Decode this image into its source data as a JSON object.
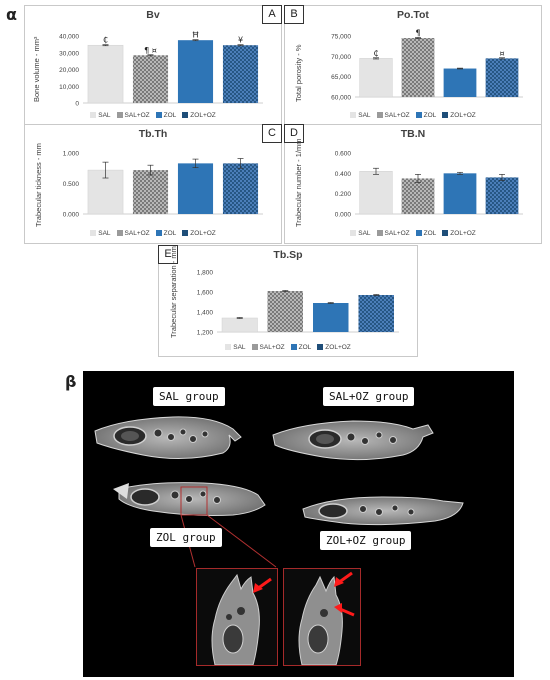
{
  "figure": {
    "alpha_label": "α",
    "beta_label": "β"
  },
  "legend_labels": [
    "SAL",
    "SAL+OZ",
    "ZOL",
    "ZOL+OZ"
  ],
  "colors": {
    "SAL": "#e4e4e4",
    "SAL+OZ": "#9a9a9a",
    "ZOL": "#2e75b6",
    "ZOL+OZ": "#1f4e79"
  },
  "panels": {
    "A": {
      "letter": "A",
      "title": "Bv",
      "ylabel": "Bone volume - mm³"
    },
    "B": {
      "letter": "B",
      "title": "Po.Tot",
      "ylabel": "Total porosity - %"
    },
    "C": {
      "letter": "C",
      "title": "Tb.Th",
      "ylabel": "Trabecular tickness - mm"
    },
    "D": {
      "letter": "D",
      "title": "TB.N",
      "ylabel": "Trabecular number - 1/mm"
    },
    "E": {
      "letter": "E",
      "title": "Tb.Sp",
      "ylabel": "Trabecular separation - mm"
    }
  },
  "chart_data": [
    {
      "panel": "A",
      "type": "bar",
      "title": "Bv",
      "ylabel": "Bone volume - mm³",
      "categories": [
        "SAL",
        "SAL+OZ",
        "ZOL",
        "ZOL+OZ"
      ],
      "values": [
        34500,
        28500,
        37500,
        34500
      ],
      "errors": [
        300,
        300,
        300,
        300
      ],
      "ylim": [
        0,
        40000
      ],
      "yticks": [
        0,
        10000,
        20000,
        30000,
        40000
      ],
      "ytick_labels": [
        "0",
        "10,000",
        "20,000",
        "30,000",
        "40,000"
      ],
      "annotations": [
        "₵",
        "¶ ¤",
        "Ħ",
        "¥"
      ],
      "grid": false,
      "legend": "bottom"
    },
    {
      "panel": "B",
      "type": "bar",
      "title": "Po.Tot",
      "ylabel": "Total porosity - %",
      "categories": [
        "SAL",
        "SAL+OZ",
        "ZOL",
        "ZOL+OZ"
      ],
      "values": [
        69500,
        74500,
        67000,
        69500
      ],
      "errors": [
        150,
        150,
        100,
        150
      ],
      "ylim": [
        60000,
        75000
      ],
      "yticks": [
        60000,
        65000,
        70000,
        75000
      ],
      "ytick_labels": [
        "60,000",
        "65,000",
        "70,000",
        "75,000"
      ],
      "annotations": [
        "₵",
        "¶",
        "",
        "¤"
      ],
      "grid": false,
      "legend": "bottom"
    },
    {
      "panel": "C",
      "type": "bar",
      "title": "Tb.Th",
      "ylabel": "Trabecular tickness - mm",
      "categories": [
        "SAL",
        "SAL+OZ",
        "ZOL",
        "ZOL+OZ"
      ],
      "values": [
        0.72,
        0.72,
        0.83,
        0.83
      ],
      "errors": [
        0.13,
        0.08,
        0.07,
        0.08
      ],
      "ylim": [
        0,
        1
      ],
      "yticks": [
        0,
        0.5,
        1
      ],
      "ytick_labels": [
        "0.000",
        "0.500",
        "1.000"
      ],
      "annotations": [
        "",
        "",
        "",
        ""
      ],
      "grid": false,
      "legend": "bottom"
    },
    {
      "panel": "D",
      "type": "bar",
      "title": "TB.N",
      "ylabel": "Trabecular number - 1/mm",
      "categories": [
        "SAL",
        "SAL+OZ",
        "ZOL",
        "ZOL+OZ"
      ],
      "values": [
        0.42,
        0.35,
        0.4,
        0.36
      ],
      "errors": [
        0.03,
        0.04,
        0.01,
        0.03
      ],
      "ylim": [
        0,
        0.6
      ],
      "yticks": [
        0,
        0.2,
        0.4,
        0.6
      ],
      "ytick_labels": [
        "0.000",
        "0.200",
        "0.400",
        "0.600"
      ],
      "annotations": [
        "",
        "",
        "",
        ""
      ],
      "grid": false,
      "legend": "bottom"
    },
    {
      "panel": "E",
      "type": "bar",
      "title": "Tb.Sp",
      "ylabel": "Trabecular separation - mm",
      "categories": [
        "SAL",
        "SAL+OZ",
        "ZOL",
        "ZOL+OZ"
      ],
      "values": [
        1.34,
        1.61,
        1.49,
        1.57
      ],
      "errors": [
        0.005,
        0.005,
        0.005,
        0.005
      ],
      "ylim": [
        1.2,
        1.8
      ],
      "yticks": [
        1.2,
        1.4,
        1.6,
        1.8
      ],
      "ytick_labels": [
        "1,200",
        "1,400",
        "1,600",
        "1,800"
      ],
      "annotations": [
        "",
        "",
        "",
        ""
      ],
      "grid": false,
      "legend": "bottom"
    }
  ],
  "ct": {
    "groups": {
      "sal": "SAL group",
      "saloz": "SAL+OZ group",
      "zol": "ZOL group",
      "zoloz": "ZOL+OZ group"
    },
    "arrow_color": "#ff1a1a"
  }
}
